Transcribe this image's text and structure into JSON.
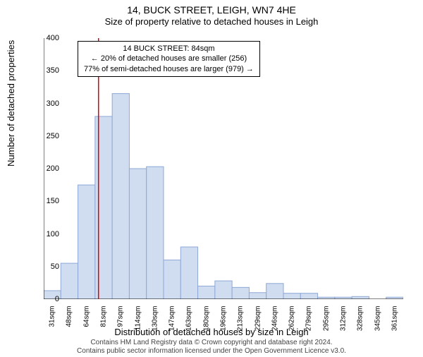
{
  "title": "14, BUCK STREET, LEIGH, WN7 4HE",
  "subtitle": "Size of property relative to detached houses in Leigh",
  "ylabel": "Number of detached properties",
  "xlabel": "Distribution of detached houses by size in Leigh",
  "copyright_line1": "Contains HM Land Registry data © Crown copyright and database right 2024.",
  "copyright_line2": "Contains public sector information licensed under the Open Government Licence v3.0.",
  "annotation": {
    "line1": "14 BUCK STREET: 84sqm",
    "line2": "← 20% of detached houses are smaller (256)",
    "line3": "77% of semi-detached houses are larger (979) →"
  },
  "chart": {
    "type": "histogram",
    "background_color": "#ffffff",
    "bar_fill": "#d0dcf0",
    "bar_stroke": "#8fa8d6",
    "axis_color": "#000000",
    "marker_line_color": "#e00000",
    "ylim": [
      0,
      400
    ],
    "ytick_step": 50,
    "yticks": [
      0,
      50,
      100,
      150,
      200,
      250,
      300,
      350,
      400
    ],
    "x_categories": [
      "31sqm",
      "48sqm",
      "64sqm",
      "81sqm",
      "97sqm",
      "114sqm",
      "130sqm",
      "147sqm",
      "163sqm",
      "180sqm",
      "196sqm",
      "213sqm",
      "229sqm",
      "246sqm",
      "262sqm",
      "279sqm",
      "295sqm",
      "312sqm",
      "328sqm",
      "345sqm",
      "361sqm"
    ],
    "values": [
      13,
      55,
      175,
      280,
      315,
      200,
      203,
      60,
      80,
      20,
      28,
      18,
      10,
      24,
      9,
      9,
      3,
      3,
      4,
      0,
      3
    ],
    "marker_bin_index": 3,
    "label_fontsize": 11,
    "title_fontsize": 14,
    "axis_fontsize": 13,
    "tick_fontsize": 10,
    "bar_width_ratio": 1.0
  }
}
